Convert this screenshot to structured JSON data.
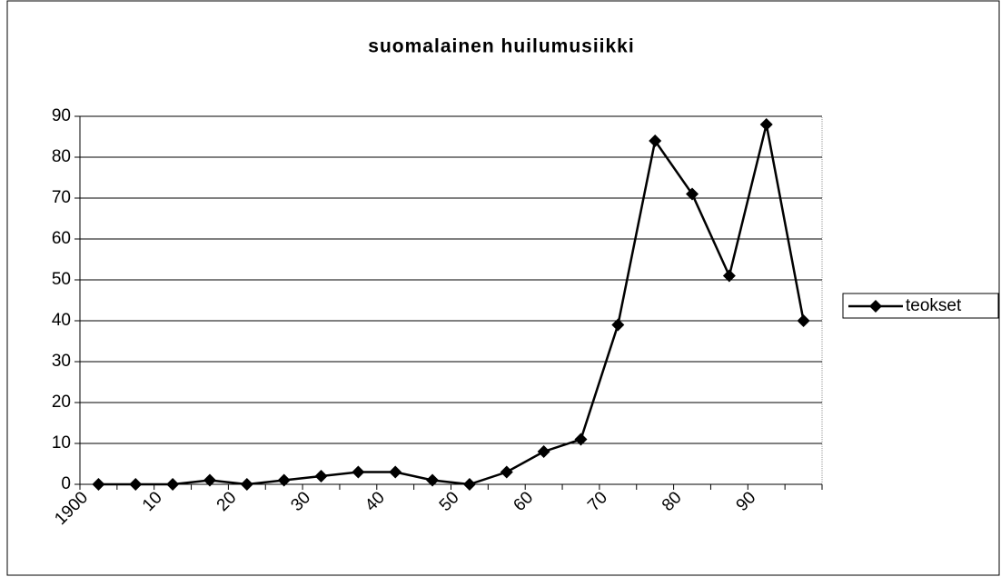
{
  "chart_data": {
    "type": "line",
    "title": "suomalainen huilumusiikki",
    "x": [
      1902.5,
      1907.5,
      1912.5,
      1917.5,
      1922.5,
      1927.5,
      1932.5,
      1937.5,
      1942.5,
      1947.5,
      1952.5,
      1957.5,
      1962.5,
      1967.5,
      1972.5,
      1977.5,
      1982.5,
      1987.5,
      1992.5,
      1997.5
    ],
    "series": [
      {
        "name": "teokset",
        "color": "#000000",
        "values": [
          0,
          0,
          0,
          1,
          0,
          1,
          2,
          3,
          3,
          1,
          0,
          3,
          8,
          11,
          39,
          84,
          71,
          51,
          88,
          40
        ]
      }
    ],
    "xlim": [
      1900,
      2000
    ],
    "xticks": [
      1900,
      {
        "value": 1910,
        "label": "10"
      },
      {
        "value": 1920,
        "label": "20"
      },
      {
        "value": 1930,
        "label": "30"
      },
      {
        "value": 1940,
        "label": "40"
      },
      {
        "value": 1950,
        "label": "50"
      },
      {
        "value": 1960,
        "label": "60"
      },
      {
        "value": 1970,
        "label": "70"
      },
      {
        "value": 1980,
        "label": "80"
      },
      {
        "value": 1990,
        "label": "90"
      }
    ],
    "xminorticks": [
      1905,
      1915,
      1925,
      1935,
      1945,
      1955,
      1965,
      1975,
      1985,
      1995,
      2000
    ],
    "ylim": [
      0,
      90
    ],
    "yticks": [
      0,
      10,
      20,
      30,
      40,
      50,
      60,
      70,
      80,
      90
    ],
    "grid": true,
    "legend": "right"
  }
}
